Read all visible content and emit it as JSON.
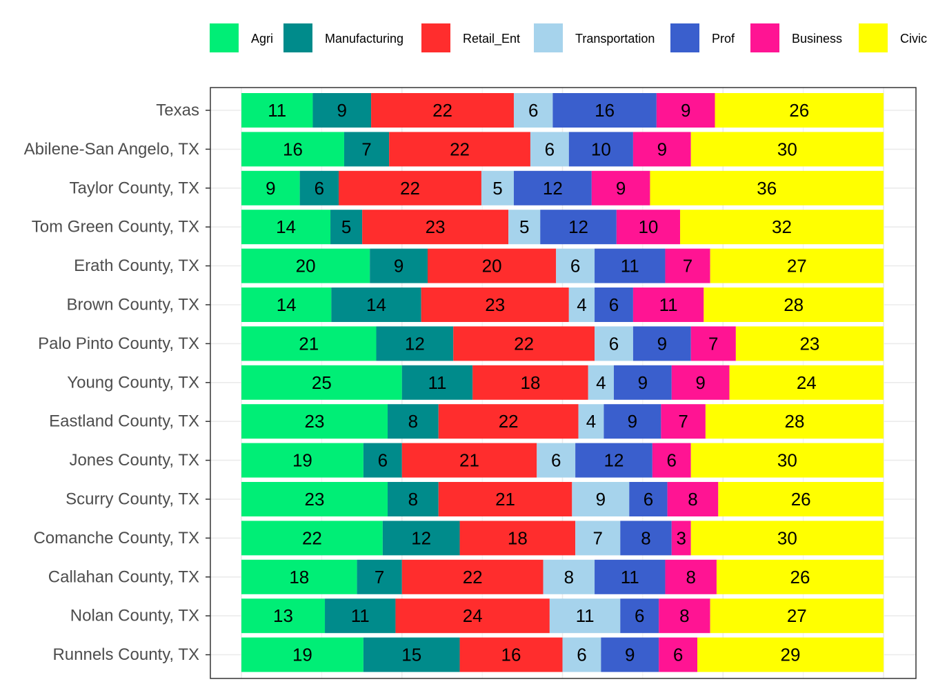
{
  "chart_data": {
    "type": "bar",
    "orientation": "horizontal",
    "stacked": true,
    "normalized": true,
    "grid": true,
    "legend_position": "top",
    "xlim": [
      0,
      100
    ],
    "categories": [
      "Texas",
      "Abilene-San Angelo, TX",
      "Taylor County, TX",
      "Tom Green County, TX",
      "Erath County, TX",
      "Brown County, TX",
      "Palo Pinto County, TX",
      "Young County, TX",
      "Eastland County, TX",
      "Jones County, TX",
      "Scurry County, TX",
      "Comanche County, TX",
      "Callahan County, TX",
      "Nolan County, TX",
      "Runnels County, TX"
    ],
    "series": [
      {
        "name": "Agri",
        "color": "#00ee76",
        "values": [
          11,
          16,
          9,
          14,
          20,
          14,
          21,
          25,
          23,
          19,
          23,
          22,
          18,
          13,
          19
        ]
      },
      {
        "name": "Manufacturing",
        "color": "#008b8b",
        "values": [
          9,
          7,
          6,
          5,
          9,
          14,
          12,
          11,
          8,
          6,
          8,
          12,
          7,
          11,
          15
        ]
      },
      {
        "name": "Retail_Ent",
        "color": "#ff2d2d",
        "values": [
          22,
          22,
          22,
          23,
          20,
          23,
          22,
          18,
          22,
          21,
          21,
          18,
          22,
          24,
          16
        ]
      },
      {
        "name": "Transportation",
        "color": "#a6d3ec",
        "values": [
          6,
          6,
          5,
          5,
          6,
          4,
          6,
          4,
          4,
          6,
          9,
          7,
          8,
          11,
          6
        ]
      },
      {
        "name": "Prof",
        "color": "#3a5fcd",
        "values": [
          16,
          10,
          12,
          12,
          11,
          6,
          9,
          9,
          9,
          12,
          6,
          8,
          11,
          6,
          9
        ]
      },
      {
        "name": "Business",
        "color": "#ff1493",
        "values": [
          9,
          9,
          9,
          10,
          7,
          11,
          7,
          9,
          7,
          6,
          8,
          3,
          8,
          8,
          6
        ]
      },
      {
        "name": "Civic",
        "color": "#ffff00",
        "values": [
          26,
          30,
          36,
          32,
          27,
          28,
          23,
          24,
          28,
          30,
          26,
          30,
          26,
          27,
          29
        ]
      }
    ]
  }
}
